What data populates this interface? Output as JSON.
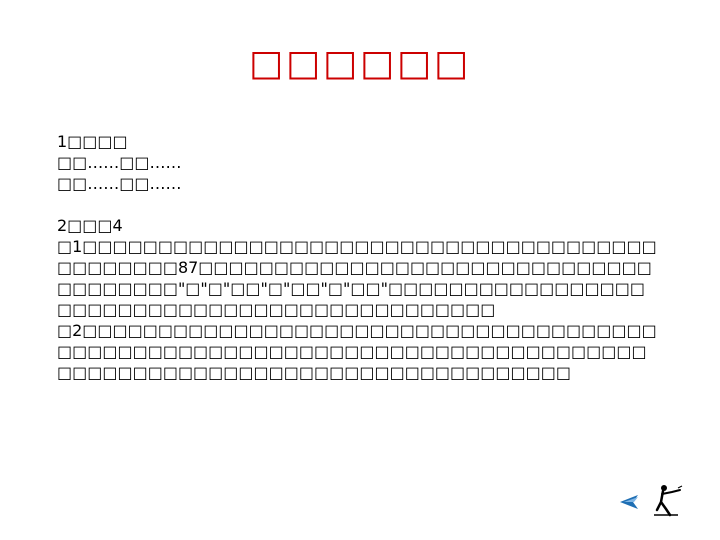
{
  "slide": {
    "title": "□□□□□□",
    "section1": {
      "heading": "1□□□□",
      "lines": [
        "□□……□□……",
        "□□……□□……"
      ]
    },
    "section2": {
      "heading": "2□□□4",
      "paragraphs": [
        "□1□□□□□□□□□□□□□□□□□□□□□□□□□□□□□□□□□□□□□□□□□□□□□□87□□□□□□□□□□□□□□□□□□□□□□□□□□□□□□□□□□□□□□\"□\"□\"□□\"□\"□□\"□\"□□\"□□□□□□□□□□□□□□□□□□□□□□□□□□□□□□□□□□□□□□□□□□□□□□",
        "□2□□□□□□□□□□□□□□□□□□□□□□□□□□□□□□□□□□□□□□□□□□□□□□□□□□□□□□□□□□□□□□□□□□□□□□□□□□□□□□□□□□□□□□□□□□□□□□□□□□□□□□□□□□□□□□□"
      ]
    }
  },
  "nav": {
    "back_icon": "left-arrow-icon",
    "figure_icon": "reading-figure-icon"
  },
  "colors": {
    "title": "#cc0000",
    "text": "#000000",
    "nav_arrow": "#1f6fb4"
  }
}
